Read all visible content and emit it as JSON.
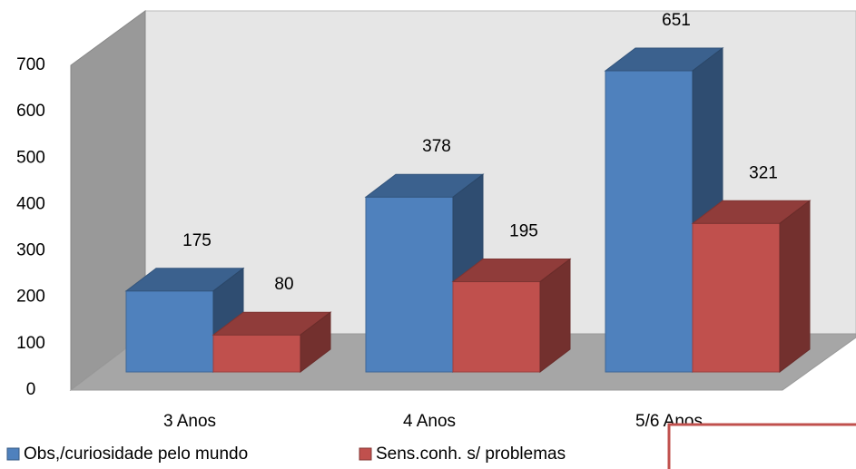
{
  "chart_data": {
    "type": "bar3d",
    "categories": [
      "3 Anos",
      "4 Anos",
      "5/6 Anos"
    ],
    "series": [
      {
        "name": "Obs,/curiosidade pelo mundo",
        "color": "#4f81bd",
        "values": [
          175,
          378,
          651
        ]
      },
      {
        "name": "Sens.conh. s/ problemas",
        "color": "#c0504d",
        "values": [
          80,
          195,
          321
        ]
      }
    ],
    "ylim": [
      0,
      700
    ],
    "yticks": [
      0,
      100,
      200,
      300,
      400,
      500,
      600,
      700
    ],
    "grid": false,
    "legend": "bottom"
  }
}
